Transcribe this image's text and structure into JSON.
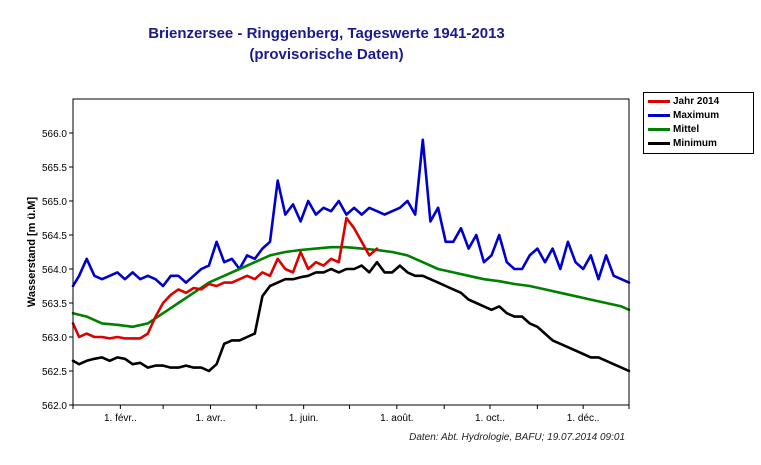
{
  "chart_data": {
    "type": "line",
    "title": "Brienzersee - Ringgenberg, Tageswerte 1941-2013",
    "subtitle": "(provisorische Daten)",
    "xlabel": "",
    "ylabel": "Wasserstand [m ü.M]",
    "ylim": [
      562.0,
      566.5
    ],
    "xlim": [
      1,
      365
    ],
    "yticks": [
      562.0,
      562.5,
      563.0,
      563.5,
      564.0,
      564.5,
      565.0,
      565.5,
      566.0
    ],
    "ytick_labels": [
      "562.0",
      "562.5",
      "563.0",
      "563.5",
      "564.0",
      "564.5",
      "565.0",
      "565.5",
      "566.0"
    ],
    "xticks": [
      {
        "day": 32,
        "label": "1. févr.."
      },
      {
        "day": 91,
        "label": "1. avr.."
      },
      {
        "day": 152,
        "label": "1. juin."
      },
      {
        "day": 213,
        "label": "1. août."
      },
      {
        "day": 274,
        "label": "1. oct.."
      },
      {
        "day": 335,
        "label": "1. déc.."
      }
    ],
    "legend_position": "right",
    "series": [
      {
        "name": "Jahr 2014",
        "color": "#dd0000",
        "x": [
          1,
          5,
          10,
          15,
          20,
          25,
          30,
          35,
          40,
          45,
          50,
          55,
          60,
          65,
          70,
          75,
          80,
          85,
          90,
          95,
          100,
          105,
          110,
          115,
          120,
          125,
          130,
          135,
          140,
          145,
          150,
          155,
          160,
          165,
          170,
          175,
          180,
          185,
          190,
          195,
          200
        ],
        "y": [
          563.2,
          563.0,
          563.05,
          563.0,
          563.0,
          562.98,
          563.0,
          562.98,
          562.98,
          562.98,
          563.05,
          563.3,
          563.5,
          563.62,
          563.7,
          563.65,
          563.72,
          563.7,
          563.78,
          563.75,
          563.8,
          563.8,
          563.85,
          563.9,
          563.85,
          563.95,
          563.9,
          564.15,
          564.0,
          563.95,
          564.25,
          564.0,
          564.1,
          564.05,
          564.15,
          564.1,
          564.75,
          564.6,
          564.4,
          564.2,
          564.3
        ]
      },
      {
        "name": "Maximum",
        "color": "#0000cc",
        "x": [
          1,
          5,
          10,
          15,
          20,
          25,
          30,
          35,
          40,
          45,
          50,
          55,
          60,
          65,
          70,
          75,
          80,
          85,
          90,
          95,
          100,
          105,
          110,
          115,
          120,
          125,
          130,
          135,
          140,
          145,
          150,
          155,
          160,
          165,
          170,
          175,
          180,
          185,
          190,
          195,
          200,
          205,
          210,
          215,
          220,
          225,
          230,
          235,
          240,
          245,
          250,
          255,
          260,
          265,
          270,
          275,
          280,
          285,
          290,
          295,
          300,
          305,
          310,
          315,
          320,
          325,
          330,
          335,
          340,
          345,
          350,
          355,
          360,
          365
        ],
        "y": [
          563.75,
          563.9,
          564.15,
          563.9,
          563.85,
          563.9,
          563.95,
          563.85,
          563.95,
          563.85,
          563.9,
          563.85,
          563.75,
          563.9,
          563.9,
          563.8,
          563.9,
          564.0,
          564.05,
          564.4,
          564.1,
          564.15,
          564.0,
          564.2,
          564.15,
          564.3,
          564.4,
          565.3,
          564.8,
          564.95,
          564.7,
          565.0,
          564.8,
          564.9,
          564.85,
          565.0,
          564.8,
          564.9,
          564.8,
          564.9,
          564.85,
          564.8,
          564.85,
          564.9,
          565.0,
          564.8,
          565.9,
          564.7,
          564.9,
          564.4,
          564.4,
          564.6,
          564.3,
          564.5,
          564.1,
          564.2,
          564.5,
          564.1,
          564.0,
          564.0,
          564.2,
          564.3,
          564.1,
          564.3,
          564.0,
          564.4,
          564.1,
          564.0,
          564.2,
          563.85,
          564.2,
          563.9,
          563.85,
          563.8
        ]
      },
      {
        "name": "Mittel",
        "color": "#008000",
        "x": [
          1,
          10,
          20,
          30,
          40,
          50,
          60,
          70,
          80,
          90,
          100,
          110,
          120,
          130,
          140,
          150,
          160,
          170,
          180,
          190,
          200,
          210,
          220,
          230,
          240,
          250,
          260,
          270,
          280,
          290,
          300,
          310,
          320,
          330,
          340,
          350,
          360,
          365
        ],
        "y": [
          563.35,
          563.3,
          563.2,
          563.18,
          563.15,
          563.2,
          563.35,
          563.5,
          563.65,
          563.8,
          563.9,
          564.0,
          564.1,
          564.2,
          564.25,
          564.28,
          564.3,
          564.32,
          564.32,
          564.3,
          564.28,
          564.25,
          564.2,
          564.1,
          564.0,
          563.95,
          563.9,
          563.85,
          563.82,
          563.78,
          563.75,
          563.7,
          563.65,
          563.6,
          563.55,
          563.5,
          563.45,
          563.4
        ]
      },
      {
        "name": "Minimum",
        "color": "#000000",
        "x": [
          1,
          5,
          10,
          15,
          20,
          25,
          30,
          35,
          40,
          45,
          50,
          55,
          60,
          65,
          70,
          75,
          80,
          85,
          90,
          95,
          100,
          105,
          110,
          115,
          120,
          125,
          130,
          135,
          140,
          145,
          150,
          155,
          160,
          165,
          170,
          175,
          180,
          185,
          190,
          195,
          200,
          205,
          210,
          215,
          220,
          225,
          230,
          235,
          240,
          245,
          250,
          255,
          260,
          265,
          270,
          275,
          280,
          285,
          290,
          295,
          300,
          305,
          310,
          315,
          320,
          325,
          330,
          335,
          340,
          345,
          350,
          355,
          360,
          365
        ],
        "y": [
          562.65,
          562.6,
          562.65,
          562.68,
          562.7,
          562.65,
          562.7,
          562.68,
          562.6,
          562.62,
          562.55,
          562.58,
          562.58,
          562.55,
          562.55,
          562.58,
          562.55,
          562.55,
          562.5,
          562.6,
          562.9,
          562.95,
          562.95,
          563.0,
          563.05,
          563.6,
          563.75,
          563.8,
          563.85,
          563.85,
          563.88,
          563.9,
          563.95,
          563.95,
          564.0,
          563.95,
          564.0,
          564.0,
          564.05,
          563.95,
          564.1,
          563.95,
          563.95,
          564.05,
          563.95,
          563.9,
          563.9,
          563.85,
          563.8,
          563.75,
          563.7,
          563.65,
          563.55,
          563.5,
          563.45,
          563.4,
          563.45,
          563.35,
          563.3,
          563.3,
          563.2,
          563.15,
          563.05,
          562.95,
          562.9,
          562.85,
          562.8,
          562.75,
          562.7,
          562.7,
          562.65,
          562.6,
          562.55,
          562.5
        ]
      }
    ]
  },
  "legend": {
    "items": [
      {
        "label": "Jahr 2014",
        "color": "#dd0000"
      },
      {
        "label": "Maximum",
        "color": "#0000cc"
      },
      {
        "label": "Mittel",
        "color": "#008000"
      },
      {
        "label": "Minimum",
        "color": "#000000"
      }
    ]
  },
  "credit": "Daten: Abt. Hydrologie, BAFU; 19.07.2014 09:01"
}
